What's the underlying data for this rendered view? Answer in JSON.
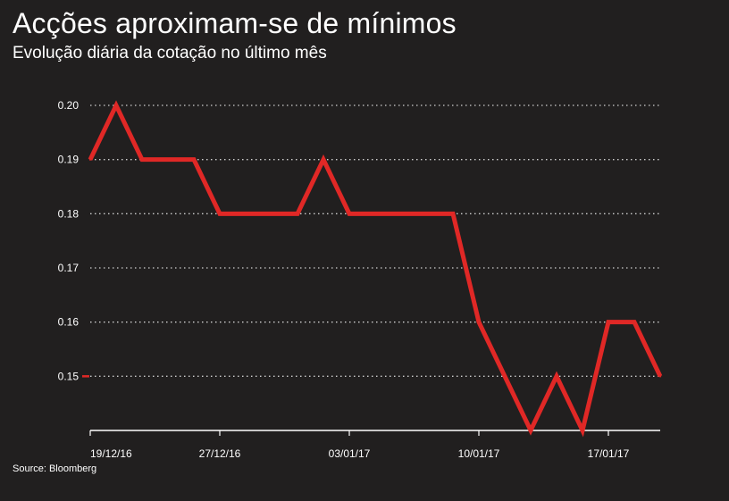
{
  "header": {
    "title": "Acções aproximam-se de mínimos",
    "subtitle": "Evolução diária da cotação no último mês"
  },
  "footer": {
    "source": "Source: Bloomberg"
  },
  "chart_data": {
    "type": "line",
    "x_tick_labels": [
      "19/12/16",
      "27/12/16",
      "03/01/17",
      "10/01/17",
      "17/01/17"
    ],
    "x_tick_index": [
      0,
      5,
      10,
      15,
      20
    ],
    "y_ticks": [
      0.2,
      0.19,
      0.18,
      0.17,
      0.16,
      0.15
    ],
    "y_tick_labels": [
      "0.20",
      "0.19",
      "0.18",
      "0.17",
      "0.16",
      "0.15"
    ],
    "ylim": [
      0.14,
      0.2
    ],
    "grid": true,
    "series": [
      {
        "color": "#e02826",
        "values": [
          0.19,
          0.2,
          0.19,
          0.19,
          0.19,
          0.18,
          0.18,
          0.18,
          0.18,
          0.19,
          0.18,
          0.18,
          0.18,
          0.18,
          0.18,
          0.16,
          0.15,
          0.14,
          0.15,
          0.14,
          0.16,
          0.16,
          0.15
        ]
      }
    ]
  }
}
